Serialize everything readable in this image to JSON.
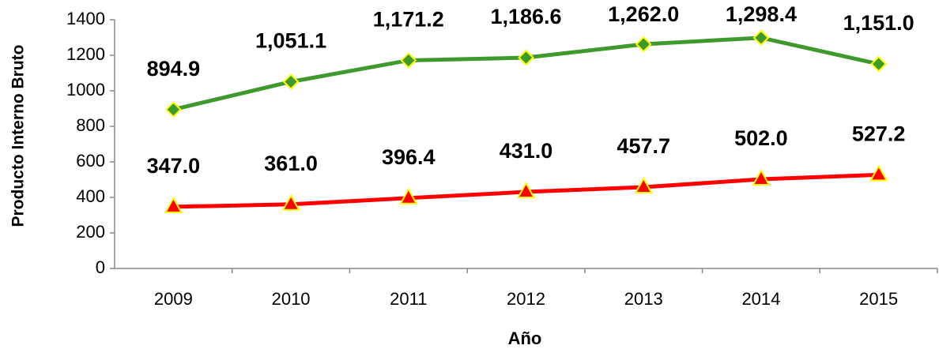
{
  "chart_data": {
    "type": "line",
    "ylabel": "Producto  Interno  Bruto",
    "xlabel": "Año",
    "categories": [
      "2009",
      "2010",
      "2011",
      "2012",
      "2013",
      "2014",
      "2015"
    ],
    "series": [
      {
        "color": "#3f9a2e",
        "marker": "diamond",
        "values": [
          894.9,
          1051.1,
          1171.2,
          1186.6,
          1262.0,
          1298.4,
          1151.0
        ],
        "value_labels": [
          "894.9",
          "1,051.1",
          "1,171.2",
          "1,186.6",
          "1,262.0",
          "1,298.4",
          "1,151.0"
        ]
      },
      {
        "color": "#ff0000",
        "marker": "triangle",
        "values": [
          347.0,
          361.0,
          396.4,
          431.0,
          457.7,
          502.0,
          527.2
        ],
        "value_labels": [
          "347.0",
          "361.0",
          "396.4",
          "431.0",
          "457.7",
          "502.0",
          "527.2"
        ]
      }
    ],
    "ylim": [
      0,
      1400
    ],
    "yticks": [
      0,
      200,
      400,
      600,
      800,
      1000,
      1200,
      1400
    ],
    "grid": false
  }
}
